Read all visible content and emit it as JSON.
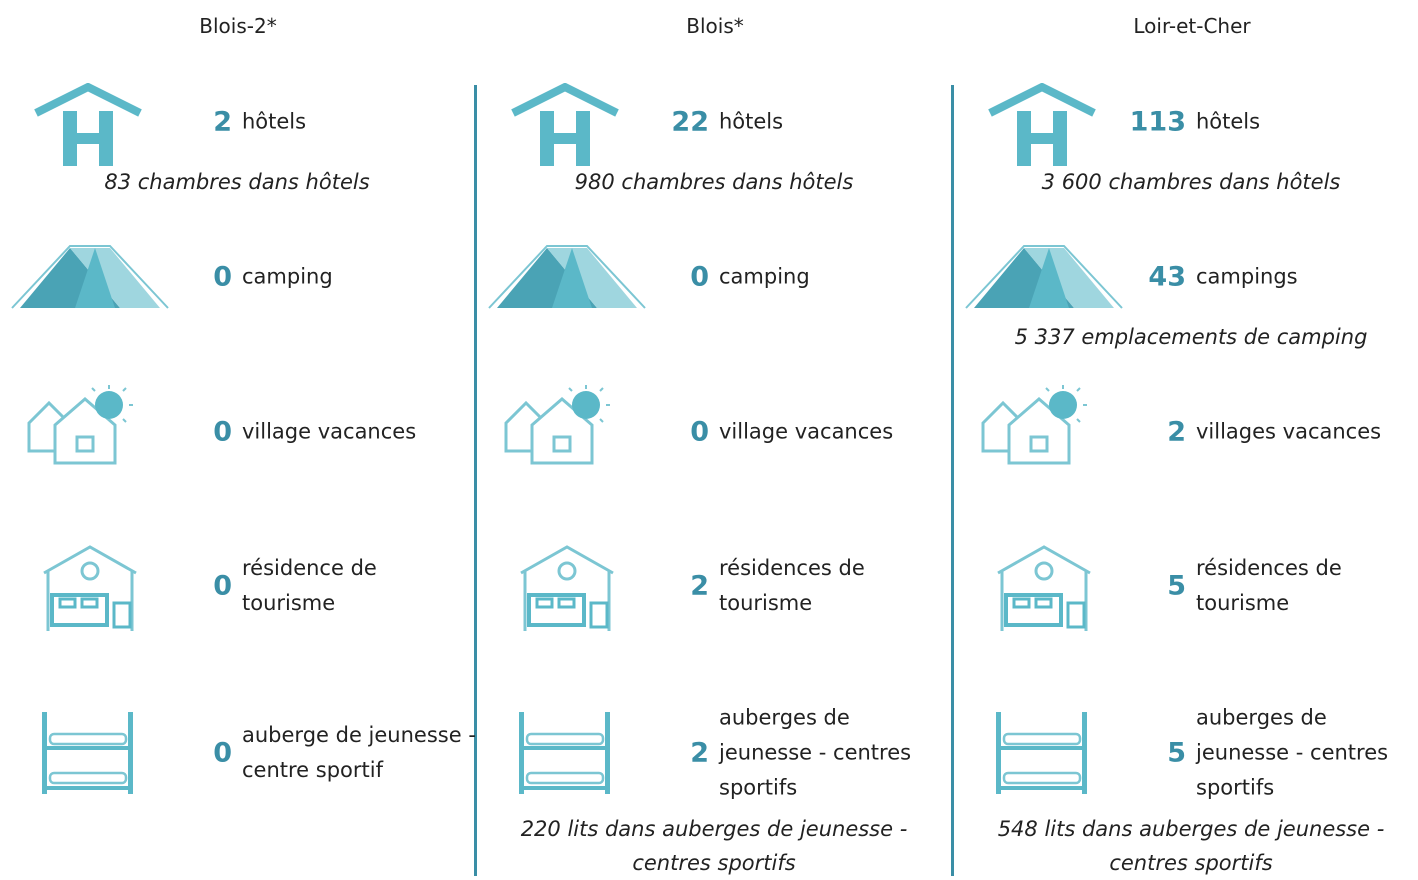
{
  "columns": [
    {
      "title": "Blois-2*",
      "items": [
        {
          "count": 2,
          "label": [
            "hôtels"
          ],
          "note": [
            "83 chambres dans hôtels"
          ]
        },
        {
          "count": 0,
          "label": [
            "camping"
          ]
        },
        {
          "count": 0,
          "label": [
            "village vacances"
          ]
        },
        {
          "count": 0,
          "label": [
            "résidence de",
            "tourisme"
          ]
        },
        {
          "count": 0,
          "label": [
            "auberge de jeunesse -",
            "centre sportif"
          ]
        }
      ]
    },
    {
      "title": "Blois*",
      "items": [
        {
          "count": 22,
          "label": [
            "hôtels"
          ],
          "note": [
            "980 chambres dans hôtels"
          ]
        },
        {
          "count": 0,
          "label": [
            "camping"
          ]
        },
        {
          "count": 0,
          "label": [
            "village vacances"
          ]
        },
        {
          "count": 2,
          "label": [
            "résidences de",
            "tourisme"
          ]
        },
        {
          "count": 2,
          "label": [
            "auberges de",
            "jeunesse - centres",
            "sportifs"
          ],
          "note": [
            "220 lits dans auberges de jeunesse -",
            "centres sportifs"
          ]
        }
      ]
    },
    {
      "title": "Loir-et-Cher",
      "items": [
        {
          "count": 113,
          "label": [
            "hôtels"
          ],
          "note": [
            "3 600 chambres dans hôtels"
          ]
        },
        {
          "count": 43,
          "label": [
            "campings"
          ],
          "note": [
            "5 337 emplacements de camping"
          ]
        },
        {
          "count": 2,
          "label": [
            "villages vacances"
          ]
        },
        {
          "count": 5,
          "label": [
            "résidences de",
            "tourisme"
          ]
        },
        {
          "count": 5,
          "label": [
            "auberges de",
            "jeunesse - centres",
            "sportifs"
          ],
          "note": [
            "548 lits dans auberges de jeunesse -",
            "centres sportifs"
          ]
        }
      ]
    }
  ]
}
